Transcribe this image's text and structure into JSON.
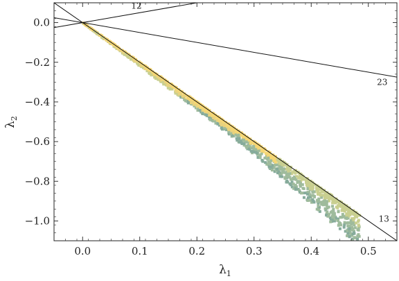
{
  "chart_data": {
    "type": "scatter",
    "title": "",
    "xlabel": "λ",
    "xlabel_sub": "1",
    "ylabel": "λ",
    "ylabel_sub": "2",
    "xlim": [
      -0.05,
      0.55
    ],
    "ylim": [
      -1.1,
      0.1
    ],
    "x_ticks": [
      {
        "value": 0.0,
        "label": "0.0"
      },
      {
        "value": 0.1,
        "label": "0.1"
      },
      {
        "value": 0.2,
        "label": "0.2"
      },
      {
        "value": 0.3,
        "label": "0.3"
      },
      {
        "value": 0.4,
        "label": "0.4"
      },
      {
        "value": 0.5,
        "label": "0.5"
      }
    ],
    "y_ticks": [
      {
        "value": 0.0,
        "label": "0.0"
      },
      {
        "value": -0.2,
        "label": "−0.2"
      },
      {
        "value": -0.4,
        "label": "−0.4"
      },
      {
        "value": -0.6,
        "label": "−0.6"
      },
      {
        "value": -0.8,
        "label": "−0.8"
      },
      {
        "value": -1.0,
        "label": "−1.0"
      }
    ],
    "grid": false,
    "reference_lines": [
      {
        "label": "12",
        "slope": 0.5,
        "label_at": [
          0.085,
          0.085
        ]
      },
      {
        "label": "23",
        "slope": -0.5,
        "label_at": [
          0.515,
          -0.3
        ]
      },
      {
        "label": "13",
        "slope": -2.0,
        "label_at": [
          0.518,
          -0.99
        ]
      }
    ],
    "point_colors": [
      "#f5d674",
      "#e8d27e",
      "#c9cf90",
      "#9fbb9c",
      "#86ab9b"
    ],
    "band": {
      "x_start": 0.0,
      "x_end": 0.485,
      "upper_slope": -2.0,
      "lower_slope": -2.2,
      "lower_slope_far": -2.35
    },
    "point_count": 1400
  }
}
